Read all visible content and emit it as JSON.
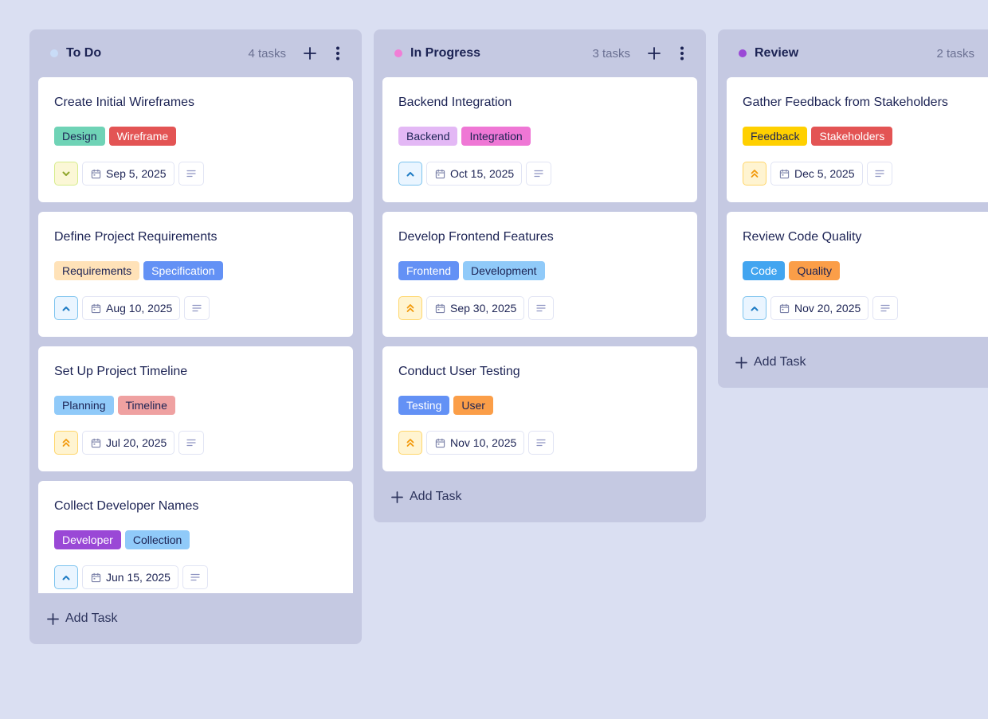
{
  "board": {
    "add_task_label": "Add Task",
    "columns": [
      {
        "title": "To Do",
        "count": "4 tasks",
        "dot_color": "#c9dcf7",
        "cards": [
          {
            "title": "Create Initial Wireframes",
            "tags": [
              {
                "label": "Design",
                "bg": "#6fd3b6",
                "fg": "#1c2354"
              },
              {
                "label": "Wireframe",
                "bg": "#e35454",
                "fg": "#ffffff"
              }
            ],
            "priority": "low",
            "date": "Sep 5, 2025"
          },
          {
            "title": "Define Project Requirements",
            "tags": [
              {
                "label": "Requirements",
                "bg": "#ffe2b8",
                "fg": "#1c2354"
              },
              {
                "label": "Specification",
                "bg": "#6391f5",
                "fg": "#ffffff"
              }
            ],
            "priority": "medium",
            "date": "Aug 10, 2025"
          },
          {
            "title": "Set Up Project Timeline",
            "tags": [
              {
                "label": "Planning",
                "bg": "#90caf9",
                "fg": "#1c2354"
              },
              {
                "label": "Timeline",
                "bg": "#efa1a1",
                "fg": "#1c2354"
              }
            ],
            "priority": "high",
            "date": "Jul 20, 2025"
          },
          {
            "title": "Collect Developer Names",
            "tags": [
              {
                "label": "Developer",
                "bg": "#9a48d6",
                "fg": "#ffffff"
              },
              {
                "label": "Collection",
                "bg": "#90caf9",
                "fg": "#1c2354"
              }
            ],
            "priority": "medium",
            "date": "Jun 15, 2025"
          }
        ]
      },
      {
        "title": "In Progress",
        "count": "3 tasks",
        "dot_color": "#f07ed6",
        "cards": [
          {
            "title": "Backend Integration",
            "tags": [
              {
                "label": "Backend",
                "bg": "#e3b8f5",
                "fg": "#1c2354"
              },
              {
                "label": "Integration",
                "bg": "#ef77d5",
                "fg": "#1c2354"
              }
            ],
            "priority": "medium",
            "date": "Oct 15, 2025"
          },
          {
            "title": "Develop Frontend Features",
            "tags": [
              {
                "label": "Frontend",
                "bg": "#6391f5",
                "fg": "#ffffff"
              },
              {
                "label": "Development",
                "bg": "#90caf9",
                "fg": "#1c2354"
              }
            ],
            "priority": "high",
            "date": "Sep 30, 2025"
          },
          {
            "title": "Conduct User Testing",
            "tags": [
              {
                "label": "Testing",
                "bg": "#6391f5",
                "fg": "#ffffff"
              },
              {
                "label": "User",
                "bg": "#fb9e48",
                "fg": "#1c2354"
              }
            ],
            "priority": "high",
            "date": "Nov 10, 2025"
          }
        ]
      },
      {
        "title": "Review",
        "count": "2 tasks",
        "dot_color": "#9a48d6",
        "cards": [
          {
            "title": "Gather Feedback from Stakeholders",
            "tags": [
              {
                "label": "Feedback",
                "bg": "#ffd000",
                "fg": "#1c2354"
              },
              {
                "label": "Stakeholders",
                "bg": "#e35454",
                "fg": "#ffffff"
              }
            ],
            "priority": "high",
            "date": "Dec 5, 2025"
          },
          {
            "title": "Review Code Quality",
            "tags": [
              {
                "label": "Code",
                "bg": "#42a5f0",
                "fg": "#ffffff"
              },
              {
                "label": "Quality",
                "bg": "#fb9e48",
                "fg": "#1c2354"
              }
            ],
            "priority": "medium",
            "date": "Nov 20, 2025"
          }
        ]
      }
    ]
  },
  "icons": {
    "priority_low": "chevron-down-icon",
    "priority_medium": "chevron-up-icon",
    "priority_high": "double-chevron-up-icon",
    "date": "calendar-icon",
    "description": "description-lines-icon",
    "add": "plus-icon",
    "menu": "kebab-menu-icon"
  }
}
